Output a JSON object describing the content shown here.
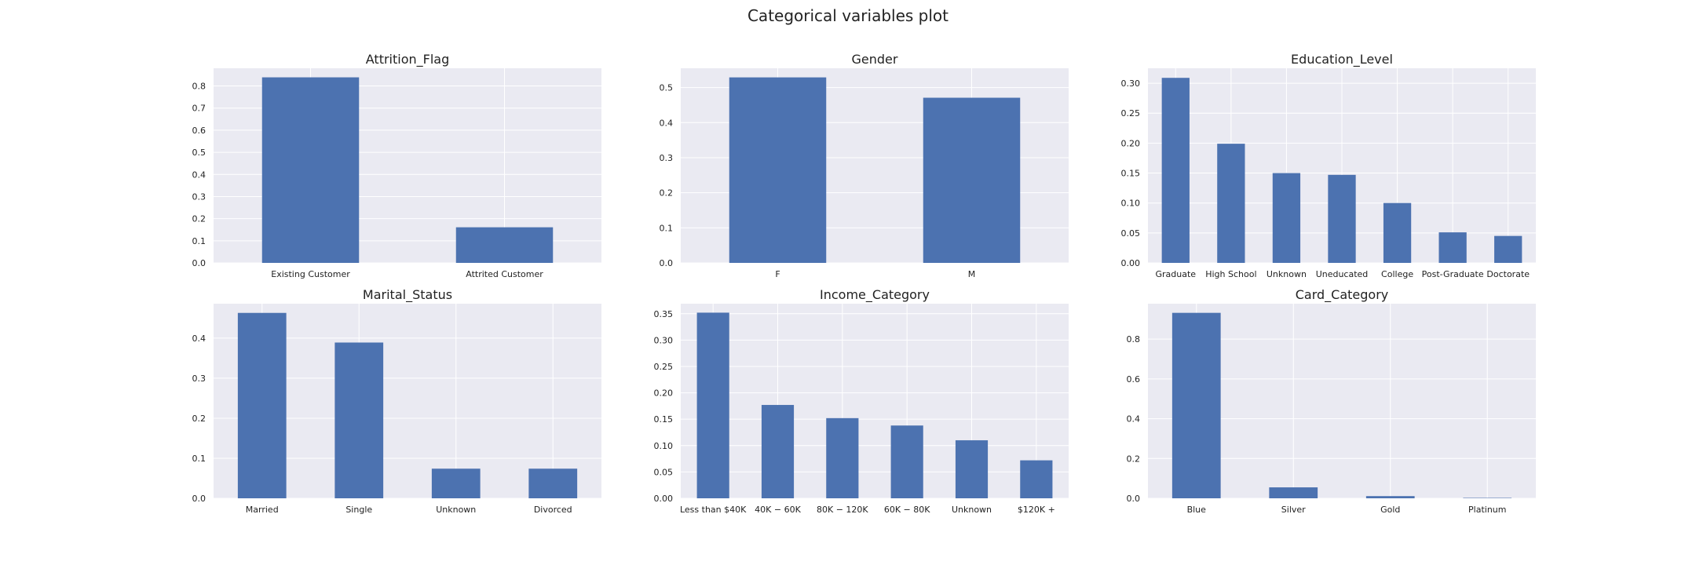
{
  "figure": {
    "title": "Categorical variables plot",
    "colors": {
      "bar": "#4c72b0",
      "panel": "#eaeaf2",
      "grid": "#ffffff",
      "text": "#222222"
    }
  },
  "chart_data": [
    {
      "type": "bar",
      "title": "Attrition_Flag",
      "categories": [
        "Existing Customer",
        "Attrited Customer"
      ],
      "values": [
        0.839,
        0.161
      ],
      "ylim": [
        0,
        0.88
      ],
      "yticks": [
        "0.0",
        "0.1",
        "0.2",
        "0.3",
        "0.4",
        "0.5",
        "0.6",
        "0.7",
        "0.8"
      ],
      "ytick_values": [
        0,
        0.1,
        0.2,
        0.3,
        0.4,
        0.5,
        0.6,
        0.7,
        0.8
      ],
      "grid": true,
      "xlabel": "",
      "ylabel": ""
    },
    {
      "type": "bar",
      "title": "Gender",
      "categories": [
        "F",
        "M"
      ],
      "values": [
        0.529,
        0.471
      ],
      "ylim": [
        0,
        0.555
      ],
      "yticks": [
        "0.0",
        "0.1",
        "0.2",
        "0.3",
        "0.4",
        "0.5"
      ],
      "ytick_values": [
        0,
        0.1,
        0.2,
        0.3,
        0.4,
        0.5
      ],
      "grid": true,
      "xlabel": "",
      "ylabel": ""
    },
    {
      "type": "bar",
      "title": "Education_Level",
      "categories": [
        "Graduate",
        "High School",
        "Unknown",
        "Uneducated",
        "College",
        "Post-Graduate",
        "Doctorate"
      ],
      "values": [
        0.309,
        0.199,
        0.15,
        0.147,
        0.1,
        0.051,
        0.045
      ],
      "ylim": [
        0,
        0.325
      ],
      "yticks": [
        "0.00",
        "0.05",
        "0.10",
        "0.15",
        "0.20",
        "0.25",
        "0.30"
      ],
      "ytick_values": [
        0,
        0.05,
        0.1,
        0.15,
        0.2,
        0.25,
        0.3
      ],
      "grid": true,
      "xlabel": "",
      "ylabel": ""
    },
    {
      "type": "bar",
      "title": "Marital_Status",
      "categories": [
        "Married",
        "Single",
        "Unknown",
        "Divorced"
      ],
      "values": [
        0.463,
        0.389,
        0.074,
        0.074
      ],
      "ylim": [
        0,
        0.486
      ],
      "yticks": [
        "0.0",
        "0.1",
        "0.2",
        "0.3",
        "0.4"
      ],
      "ytick_values": [
        0,
        0.1,
        0.2,
        0.3,
        0.4
      ],
      "grid": true,
      "xlabel": "",
      "ylabel": ""
    },
    {
      "type": "bar",
      "title": "Income_Category",
      "categories": [
        "Less than $40K",
        "$40K - $60K",
        "$80K - $120K",
        "$60K - $80K",
        "Unknown",
        "$120K +"
      ],
      "category_labels": [
        "Less than $40K",
        "40K − 60K",
        "80K − 120K",
        "60K − 80K",
        "Unknown",
        "$120K +"
      ],
      "values": [
        0.352,
        0.177,
        0.152,
        0.138,
        0.11,
        0.072
      ],
      "ylim": [
        0,
        0.369
      ],
      "yticks": [
        "0.00",
        "0.05",
        "0.10",
        "0.15",
        "0.20",
        "0.25",
        "0.30",
        "0.35"
      ],
      "ytick_values": [
        0,
        0.05,
        0.1,
        0.15,
        0.2,
        0.25,
        0.3,
        0.35
      ],
      "grid": true,
      "xlabel": "",
      "ylabel": ""
    },
    {
      "type": "bar",
      "title": "Card_Category",
      "categories": [
        "Blue",
        "Silver",
        "Gold",
        "Platinum"
      ],
      "values": [
        0.932,
        0.055,
        0.011,
        0.002
      ],
      "ylim": [
        0,
        0.978
      ],
      "yticks": [
        "0.0",
        "0.2",
        "0.4",
        "0.6",
        "0.8"
      ],
      "ytick_values": [
        0,
        0.2,
        0.4,
        0.6,
        0.8
      ],
      "grid": true,
      "xlabel": "",
      "ylabel": ""
    }
  ]
}
